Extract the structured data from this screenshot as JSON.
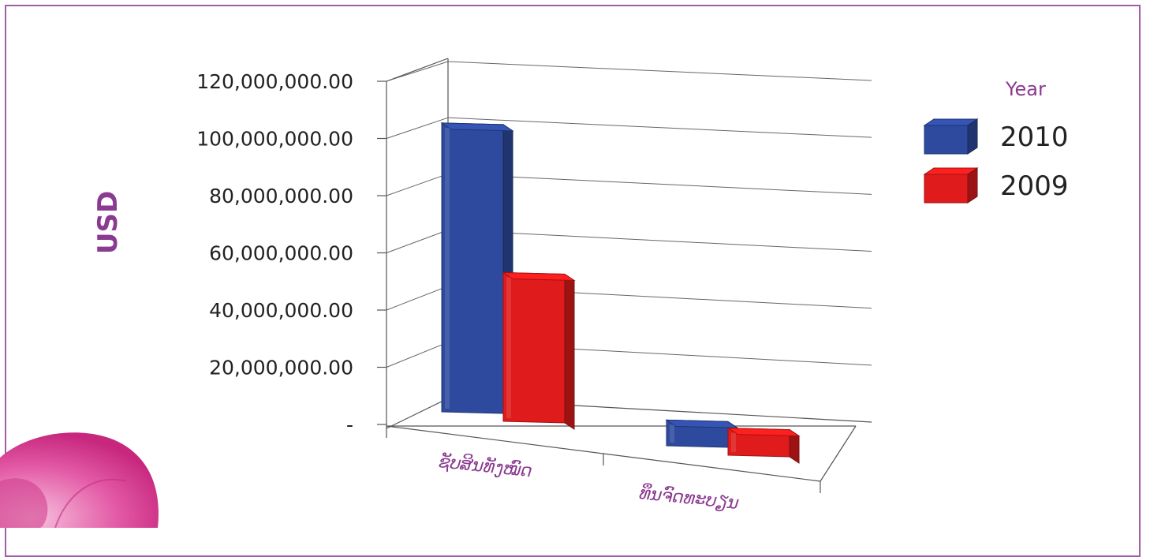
{
  "chart_data": {
    "type": "bar",
    "categories": [
      "ຊັບສິນທັງໝົດ",
      "ທຶນຈົດທະບຽນ"
    ],
    "series": [
      {
        "name": "2010",
        "values": [
          101000000,
          9000000
        ],
        "color": "#2e4a9e"
      },
      {
        "name": "2009",
        "values": [
          52000000,
          9500000
        ],
        "color": "#e01b1b"
      }
    ],
    "ylabel": "USD",
    "ylim": [
      0,
      120000000
    ],
    "yticks": [
      "-",
      "20,000,000.00",
      "40,000,000.00",
      "60,000,000.00",
      "80,000,000.00",
      "100,000,000.00",
      "120,000,000.00"
    ],
    "grid": true,
    "legend_title": "Year",
    "legend_position": "top-right"
  },
  "colors": {
    "frame_border": "#a35ca8",
    "label_text": "#8a3a90",
    "flower": "#e35aa6"
  }
}
